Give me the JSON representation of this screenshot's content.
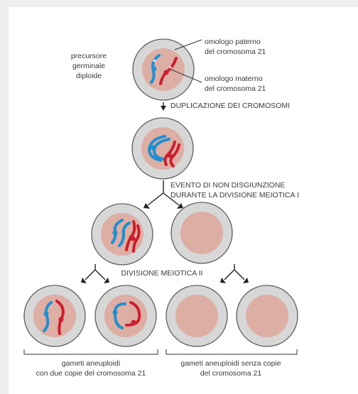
{
  "labels": {
    "precursor": [
      "precursore",
      "germinale",
      "diploide"
    ],
    "paternal": [
      "omologo paterno",
      "del cromosoma 21"
    ],
    "maternal": [
      "omologo materno",
      "del cromosoma 21"
    ],
    "duplication": "DUPLICAZIONE DEI CROMOSOMI",
    "nondisjunction": [
      "EVENTO DI NON DISGIUNZIONE",
      "DURANTE LA DIVISIONE MEIOTICA I"
    ],
    "meiosis2": "DIVISIONE MEIOTICA II",
    "gametes_two_copies": [
      "gameti aneuploidi",
      "con due copie del cromosoma 21"
    ],
    "gametes_no_copies": [
      "gameti aneuploidi senza copie",
      "del cromosoma 21"
    ]
  },
  "colors": {
    "paternal": "#1f8fd0",
    "maternal": "#cc1f2d",
    "nucleus": "#ddaea4",
    "cell": "#d7d7d7"
  }
}
